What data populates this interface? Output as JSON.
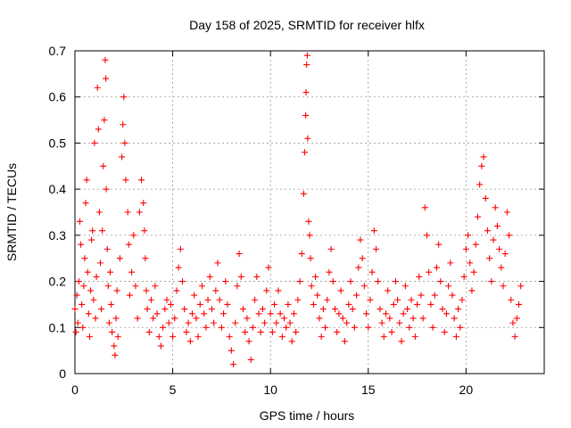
{
  "chart_data": {
    "type": "scatter",
    "title": "Day 158 of 2025, SRMTID for receiver hlfx",
    "xlabel": "GPS time / hours",
    "ylabel": "SRMTID / TECUs",
    "xlim": [
      0,
      24
    ],
    "ylim": [
      0,
      0.7
    ],
    "xticks": [
      0,
      5,
      10,
      15,
      20
    ],
    "yticks": [
      0,
      0.1,
      0.2,
      0.3,
      0.4,
      0.5,
      0.6,
      0.7
    ],
    "ytick_labels": [
      "0",
      "0.1",
      "0.2",
      "0.3",
      "0.4",
      "0.5",
      "0.6",
      "0.7"
    ],
    "grid": true,
    "marker": "+",
    "series": [
      {
        "name": "SRMTID",
        "color": "#ff0000",
        "points": [
          [
            0.0,
            0.14
          ],
          [
            0.05,
            0.09
          ],
          [
            0.1,
            0.17
          ],
          [
            0.15,
            0.11
          ],
          [
            0.2,
            0.2
          ],
          [
            0.25,
            0.33
          ],
          [
            0.3,
            0.28
          ],
          [
            0.35,
            0.15
          ],
          [
            0.4,
            0.1
          ],
          [
            0.45,
            0.19
          ],
          [
            0.5,
            0.25
          ],
          [
            0.55,
            0.37
          ],
          [
            0.6,
            0.42
          ],
          [
            0.65,
            0.22
          ],
          [
            0.7,
            0.13
          ],
          [
            0.75,
            0.08
          ],
          [
            0.8,
            0.18
          ],
          [
            0.85,
            0.29
          ],
          [
            0.9,
            0.31
          ],
          [
            0.95,
            0.16
          ],
          [
            1.0,
            0.5
          ],
          [
            1.05,
            0.12
          ],
          [
            1.1,
            0.21
          ],
          [
            1.15,
            0.62
          ],
          [
            1.2,
            0.53
          ],
          [
            1.25,
            0.35
          ],
          [
            1.3,
            0.24
          ],
          [
            1.35,
            0.14
          ],
          [
            1.4,
            0.31
          ],
          [
            1.45,
            0.45
          ],
          [
            1.5,
            0.55
          ],
          [
            1.55,
            0.68
          ],
          [
            1.58,
            0.64
          ],
          [
            1.6,
            0.4
          ],
          [
            1.65,
            0.27
          ],
          [
            1.7,
            0.19
          ],
          [
            1.75,
            0.11
          ],
          [
            1.8,
            0.22
          ],
          [
            1.85,
            0.15
          ],
          [
            1.9,
            0.09
          ],
          [
            2.0,
            0.06
          ],
          [
            2.05,
            0.04
          ],
          [
            2.1,
            0.12
          ],
          [
            2.15,
            0.18
          ],
          [
            2.2,
            0.08
          ],
          [
            2.3,
            0.25
          ],
          [
            2.4,
            0.47
          ],
          [
            2.45,
            0.54
          ],
          [
            2.5,
            0.6
          ],
          [
            2.55,
            0.5
          ],
          [
            2.6,
            0.42
          ],
          [
            2.7,
            0.35
          ],
          [
            2.75,
            0.28
          ],
          [
            2.8,
            0.17
          ],
          [
            2.9,
            0.22
          ],
          [
            3.0,
            0.3
          ],
          [
            3.1,
            0.19
          ],
          [
            3.2,
            0.12
          ],
          [
            3.3,
            0.35
          ],
          [
            3.4,
            0.42
          ],
          [
            3.5,
            0.37
          ],
          [
            3.55,
            0.31
          ],
          [
            3.6,
            0.25
          ],
          [
            3.65,
            0.18
          ],
          [
            3.7,
            0.14
          ],
          [
            3.8,
            0.09
          ],
          [
            3.9,
            0.16
          ],
          [
            4.0,
            0.12
          ],
          [
            4.1,
            0.19
          ],
          [
            4.2,
            0.13
          ],
          [
            4.3,
            0.08
          ],
          [
            4.4,
            0.06
          ],
          [
            4.5,
            0.1
          ],
          [
            4.6,
            0.14
          ],
          [
            4.7,
            0.16
          ],
          [
            4.8,
            0.11
          ],
          [
            4.9,
            0.15
          ],
          [
            5.0,
            0.08
          ],
          [
            5.1,
            0.12
          ],
          [
            5.2,
            0.18
          ],
          [
            5.3,
            0.23
          ],
          [
            5.4,
            0.27
          ],
          [
            5.5,
            0.2
          ],
          [
            5.6,
            0.14
          ],
          [
            5.7,
            0.09
          ],
          [
            5.8,
            0.11
          ],
          [
            5.9,
            0.07
          ],
          [
            6.0,
            0.13
          ],
          [
            6.1,
            0.17
          ],
          [
            6.2,
            0.12
          ],
          [
            6.3,
            0.08
          ],
          [
            6.4,
            0.15
          ],
          [
            6.5,
            0.19
          ],
          [
            6.6,
            0.13
          ],
          [
            6.7,
            0.1
          ],
          [
            6.8,
            0.16
          ],
          [
            6.9,
            0.21
          ],
          [
            7.0,
            0.14
          ],
          [
            7.1,
            0.11
          ],
          [
            7.2,
            0.18
          ],
          [
            7.3,
            0.24
          ],
          [
            7.4,
            0.16
          ],
          [
            7.5,
            0.1
          ],
          [
            7.6,
            0.13
          ],
          [
            7.7,
            0.2
          ],
          [
            7.8,
            0.15
          ],
          [
            7.9,
            0.08
          ],
          [
            8.0,
            0.05
          ],
          [
            8.1,
            0.02
          ],
          [
            8.2,
            0.11
          ],
          [
            8.3,
            0.19
          ],
          [
            8.4,
            0.26
          ],
          [
            8.5,
            0.21
          ],
          [
            8.6,
            0.14
          ],
          [
            8.7,
            0.09
          ],
          [
            8.8,
            0.12
          ],
          [
            8.9,
            0.07
          ],
          [
            9.0,
            0.03
          ],
          [
            9.1,
            0.1
          ],
          [
            9.2,
            0.16
          ],
          [
            9.3,
            0.21
          ],
          [
            9.4,
            0.13
          ],
          [
            9.5,
            0.09
          ],
          [
            9.6,
            0.14
          ],
          [
            9.7,
            0.11
          ],
          [
            9.8,
            0.18
          ],
          [
            9.9,
            0.23
          ],
          [
            10.0,
            0.13
          ],
          [
            10.1,
            0.09
          ],
          [
            10.2,
            0.15
          ],
          [
            10.3,
            0.11
          ],
          [
            10.4,
            0.18
          ],
          [
            10.5,
            0.13
          ],
          [
            10.6,
            0.08
          ],
          [
            10.7,
            0.12
          ],
          [
            10.8,
            0.1
          ],
          [
            10.9,
            0.15
          ],
          [
            11.0,
            0.11
          ],
          [
            11.1,
            0.07
          ],
          [
            11.2,
            0.13
          ],
          [
            11.3,
            0.09
          ],
          [
            11.4,
            0.16
          ],
          [
            11.5,
            0.2
          ],
          [
            11.6,
            0.26
          ],
          [
            11.7,
            0.39
          ],
          [
            11.75,
            0.48
          ],
          [
            11.8,
            0.56
          ],
          [
            11.82,
            0.61
          ],
          [
            11.85,
            0.67
          ],
          [
            11.88,
            0.69
          ],
          [
            11.9,
            0.51
          ],
          [
            11.95,
            0.33
          ],
          [
            12.0,
            0.3
          ],
          [
            12.05,
            0.25
          ],
          [
            12.1,
            0.19
          ],
          [
            12.2,
            0.15
          ],
          [
            12.3,
            0.21
          ],
          [
            12.4,
            0.17
          ],
          [
            12.5,
            0.12
          ],
          [
            12.6,
            0.08
          ],
          [
            12.7,
            0.14
          ],
          [
            12.8,
            0.1
          ],
          [
            12.9,
            0.16
          ],
          [
            13.0,
            0.22
          ],
          [
            13.1,
            0.27
          ],
          [
            13.2,
            0.2
          ],
          [
            13.3,
            0.14
          ],
          [
            13.4,
            0.09
          ],
          [
            13.5,
            0.13
          ],
          [
            13.6,
            0.18
          ],
          [
            13.7,
            0.12
          ],
          [
            13.8,
            0.07
          ],
          [
            13.9,
            0.11
          ],
          [
            14.0,
            0.15
          ],
          [
            14.1,
            0.2
          ],
          [
            14.2,
            0.14
          ],
          [
            14.3,
            0.1
          ],
          [
            14.4,
            0.17
          ],
          [
            14.5,
            0.23
          ],
          [
            14.6,
            0.29
          ],
          [
            14.7,
            0.25
          ],
          [
            14.8,
            0.19
          ],
          [
            14.9,
            0.13
          ],
          [
            15.0,
            0.1
          ],
          [
            15.1,
            0.16
          ],
          [
            15.2,
            0.22
          ],
          [
            15.3,
            0.31
          ],
          [
            15.4,
            0.27
          ],
          [
            15.5,
            0.2
          ],
          [
            15.6,
            0.14
          ],
          [
            15.7,
            0.11
          ],
          [
            15.8,
            0.08
          ],
          [
            15.9,
            0.13
          ],
          [
            16.0,
            0.18
          ],
          [
            16.1,
            0.12
          ],
          [
            16.2,
            0.09
          ],
          [
            16.3,
            0.15
          ],
          [
            16.4,
            0.2
          ],
          [
            16.5,
            0.16
          ],
          [
            16.6,
            0.11
          ],
          [
            16.7,
            0.07
          ],
          [
            16.8,
            0.13
          ],
          [
            16.9,
            0.19
          ],
          [
            17.0,
            0.14
          ],
          [
            17.1,
            0.1
          ],
          [
            17.2,
            0.16
          ],
          [
            17.3,
            0.12
          ],
          [
            17.4,
            0.08
          ],
          [
            17.5,
            0.15
          ],
          [
            17.6,
            0.21
          ],
          [
            17.7,
            0.17
          ],
          [
            17.8,
            0.12
          ],
          [
            17.9,
            0.36
          ],
          [
            18.0,
            0.3
          ],
          [
            18.1,
            0.22
          ],
          [
            18.2,
            0.15
          ],
          [
            18.3,
            0.1
          ],
          [
            18.4,
            0.17
          ],
          [
            18.5,
            0.23
          ],
          [
            18.6,
            0.28
          ],
          [
            18.7,
            0.2
          ],
          [
            18.8,
            0.14
          ],
          [
            18.9,
            0.09
          ],
          [
            19.0,
            0.13
          ],
          [
            19.1,
            0.19
          ],
          [
            19.2,
            0.24
          ],
          [
            19.3,
            0.17
          ],
          [
            19.4,
            0.12
          ],
          [
            19.5,
            0.08
          ],
          [
            19.6,
            0.14
          ],
          [
            19.7,
            0.1
          ],
          [
            19.8,
            0.16
          ],
          [
            19.9,
            0.21
          ],
          [
            20.0,
            0.27
          ],
          [
            20.1,
            0.3
          ],
          [
            20.2,
            0.24
          ],
          [
            20.3,
            0.18
          ],
          [
            20.4,
            0.22
          ],
          [
            20.5,
            0.28
          ],
          [
            20.6,
            0.34
          ],
          [
            20.7,
            0.41
          ],
          [
            20.8,
            0.45
          ],
          [
            20.9,
            0.47
          ],
          [
            21.0,
            0.38
          ],
          [
            21.1,
            0.31
          ],
          [
            21.2,
            0.25
          ],
          [
            21.3,
            0.2
          ],
          [
            21.4,
            0.29
          ],
          [
            21.5,
            0.36
          ],
          [
            21.6,
            0.32
          ],
          [
            21.7,
            0.27
          ],
          [
            21.8,
            0.23
          ],
          [
            21.9,
            0.19
          ],
          [
            22.0,
            0.26
          ],
          [
            22.1,
            0.35
          ],
          [
            22.2,
            0.3
          ],
          [
            22.3,
            0.16
          ],
          [
            22.4,
            0.11
          ],
          [
            22.5,
            0.08
          ],
          [
            22.6,
            0.12
          ],
          [
            22.7,
            0.15
          ],
          [
            22.8,
            0.19
          ]
        ]
      }
    ]
  }
}
